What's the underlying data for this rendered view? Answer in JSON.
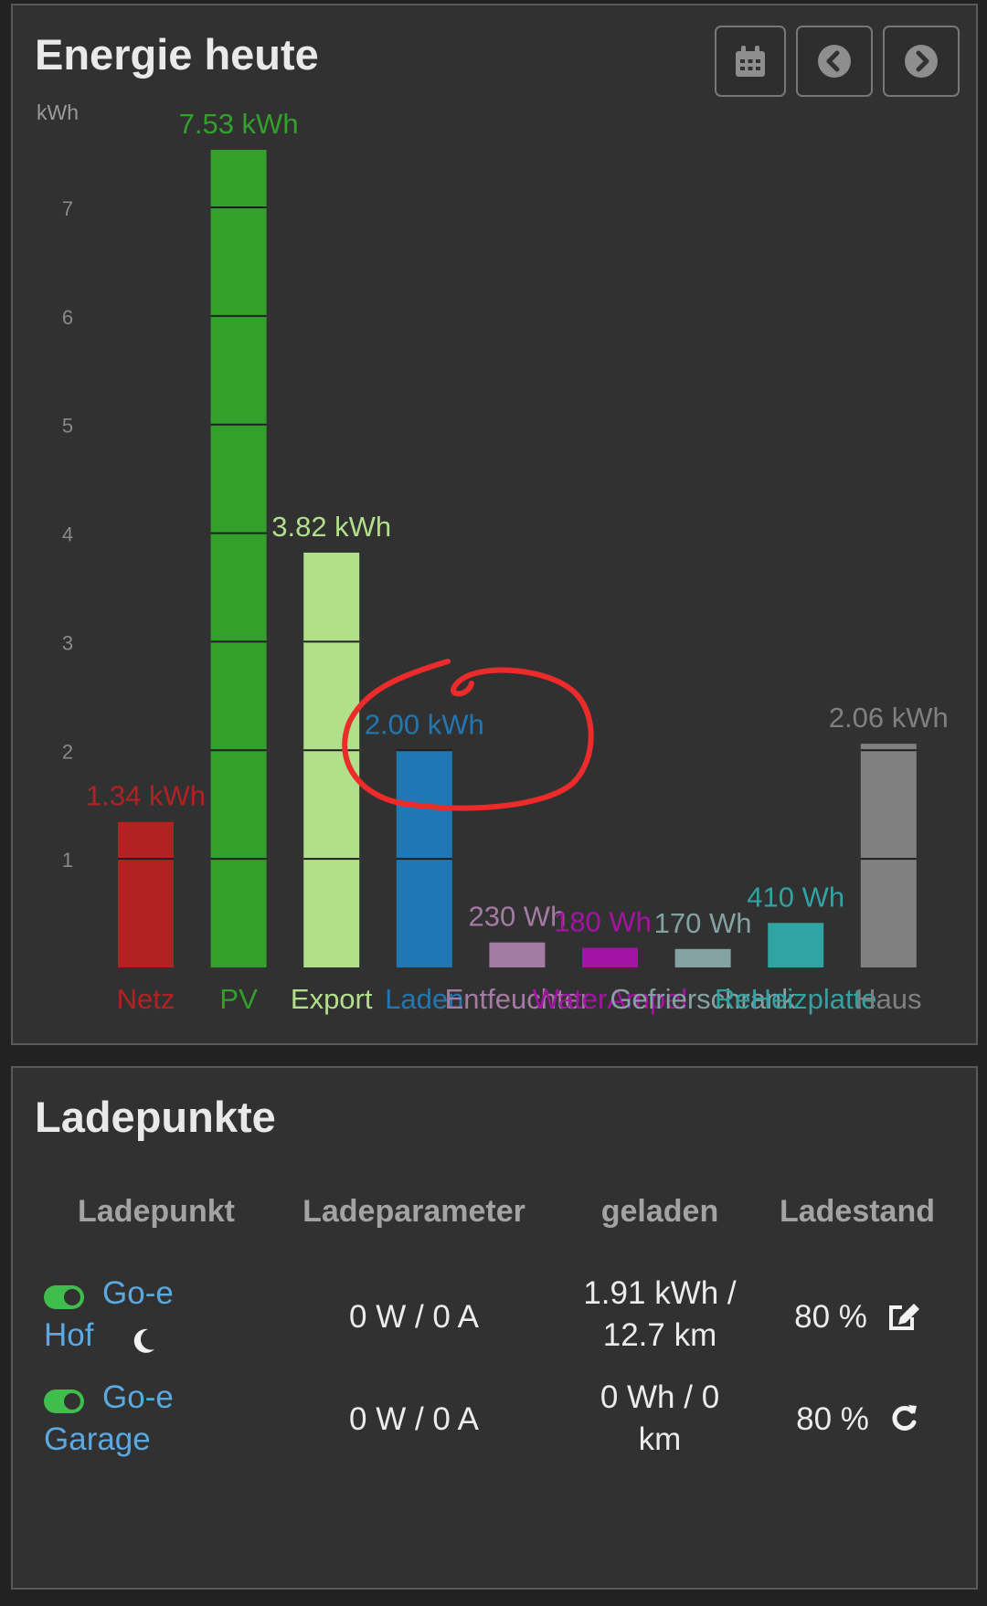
{
  "energy": {
    "title": "Energie heute",
    "buttons": {
      "calendar": "calendar-icon",
      "previous": "chevron-left-circle-icon",
      "next": "chevron-right-circle-icon"
    }
  },
  "chart_data": {
    "type": "bar",
    "ylabel": "kWh",
    "ylim": [
      0,
      7.6
    ],
    "yticks": [
      1,
      2,
      3,
      4,
      5,
      6,
      7
    ],
    "grid": false,
    "legend": "none",
    "categories": [
      "Netz",
      "PV",
      "Export",
      "Laden",
      "Entfeuchter",
      "WaterAmpel",
      "Gefrierschrank",
      "ReHeizplatte",
      "Haus"
    ],
    "values": [
      1.34,
      7.53,
      3.82,
      2.0,
      0.23,
      0.18,
      0.17,
      0.41,
      2.06
    ],
    "value_labels": [
      "1.34 kWh",
      "7.53 kWh",
      "3.82 kWh",
      "2.00 kWh",
      "230 Wh",
      "180 Wh",
      "170 Wh",
      "410 Wh",
      "2.06 kWh"
    ],
    "colors": [
      "#b32222",
      "#34a02c",
      "#b2df8a",
      "#1f78b4",
      "#a47ba2",
      "#a414a4",
      "#84a2a2",
      "#30a3a3",
      "#808080"
    ],
    "annotation": {
      "type": "hand-drawn-circle",
      "target": "Laden",
      "color": "#ee2b2b"
    }
  },
  "chargepoints": {
    "title": "Ladepunkte",
    "headers": [
      "Ladepunkt",
      "Ladeparameter",
      "geladen",
      "Ladestand"
    ],
    "rows": [
      {
        "name_line1": "Go-e",
        "name_line2": "Hof",
        "mode_icon": "moon-icon",
        "params": "0 W / 0 A",
        "charged_line1": "1.91 kWh /",
        "charged_line2": "12.7 km",
        "soc": "80 %",
        "soc_icon": "edit-icon"
      },
      {
        "name_line1": "Go-e",
        "name_line2": "Garage",
        "params": "0 W / 0 A",
        "charged_line1": "0 Wh / 0",
        "charged_line2": "km",
        "soc": "80 %",
        "soc_icon": "refresh-icon"
      }
    ]
  },
  "colors": {
    "background": "#222222",
    "panel": "#313131",
    "link": "#5aa9e1",
    "toggle_on": "#3fbd4d"
  }
}
